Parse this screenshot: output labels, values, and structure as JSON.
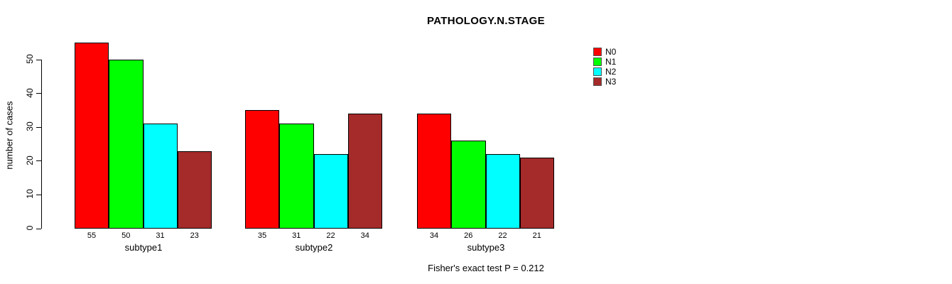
{
  "chart_data": {
    "type": "bar",
    "title": "PATHOLOGY.N.STAGE",
    "ylabel": "number of cases",
    "xlabel": "",
    "categories": [
      "subtype1",
      "subtype2",
      "subtype3"
    ],
    "series": [
      {
        "name": "N0",
        "color": "#ff0000",
        "values": [
          55,
          35,
          34
        ]
      },
      {
        "name": "N1",
        "color": "#00ff00",
        "values": [
          50,
          31,
          26
        ]
      },
      {
        "name": "N2",
        "color": "#00ffff",
        "values": [
          31,
          22,
          22
        ]
      },
      {
        "name": "N3",
        "color": "#a52a2a",
        "values": [
          23,
          34,
          21
        ]
      }
    ],
    "yticks": [
      0,
      10,
      20,
      30,
      40,
      50
    ],
    "ylim": [
      0,
      57
    ],
    "grid": false,
    "legend_position": "top-right",
    "bar_value_labels": true,
    "annotation": "Fisher's exact test P = 0.212"
  }
}
